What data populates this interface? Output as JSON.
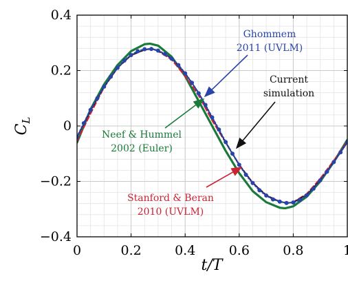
{
  "chart_data": {
    "type": "line",
    "xlabel_main": "t/T",
    "ylabel_main": "C",
    "ylabel_sub": "L",
    "xlim": [
      0,
      1
    ],
    "ylim": [
      -0.4,
      0.4
    ],
    "xticks": [
      0,
      0.2,
      0.4,
      0.6,
      0.8,
      1
    ],
    "xtick_labels": [
      "0",
      "0.2",
      "0.4",
      "0.6",
      "0.8",
      "1"
    ],
    "yticks": [
      -0.4,
      -0.2,
      0,
      0.2,
      0.4
    ],
    "ytick_labels": [
      "−0.4",
      "−0.2",
      "0",
      "0.2",
      "0.4"
    ],
    "grid": true,
    "series": [
      {
        "name": "Neef & Hummel 2002 (Euler)",
        "color": "#1a7a3a",
        "style": "solid-thick",
        "x": [
          0,
          0.05,
          0.1,
          0.15,
          0.2,
          0.25,
          0.27,
          0.3,
          0.35,
          0.4,
          0.45,
          0.5,
          0.55,
          0.6,
          0.65,
          0.7,
          0.75,
          0.77,
          0.8,
          0.85,
          0.9,
          0.95,
          1.0
        ],
        "y": [
          -0.06,
          0.06,
          0.15,
          0.22,
          0.27,
          0.295,
          0.297,
          0.29,
          0.25,
          0.18,
          0.09,
          0.0,
          -0.09,
          -0.17,
          -0.235,
          -0.275,
          -0.295,
          -0.297,
          -0.29,
          -0.255,
          -0.2,
          -0.13,
          -0.05
        ]
      },
      {
        "name": "Stanford & Beran 2010 (UVLM)",
        "color": "#cc2233",
        "style": "dashed",
        "x": [
          0,
          0.05,
          0.1,
          0.15,
          0.2,
          0.25,
          0.28,
          0.3,
          0.35,
          0.4,
          0.45,
          0.5,
          0.55,
          0.6,
          0.65,
          0.7,
          0.75,
          0.78,
          0.8,
          0.85,
          0.9,
          0.95,
          1.0
        ],
        "y": [
          -0.055,
          0.045,
          0.14,
          0.21,
          0.255,
          0.275,
          0.278,
          0.27,
          0.24,
          0.18,
          0.11,
          0.02,
          -0.06,
          -0.14,
          -0.205,
          -0.25,
          -0.273,
          -0.278,
          -0.275,
          -0.245,
          -0.19,
          -0.125,
          -0.055
        ]
      },
      {
        "name": "Current simulation",
        "color": "#111111",
        "style": "solid",
        "x": [
          0,
          0.05,
          0.1,
          0.15,
          0.2,
          0.25,
          0.28,
          0.3,
          0.35,
          0.4,
          0.45,
          0.5,
          0.55,
          0.6,
          0.65,
          0.7,
          0.75,
          0.78,
          0.8,
          0.85,
          0.9,
          0.95,
          1.0
        ],
        "y": [
          -0.04,
          0.055,
          0.14,
          0.21,
          0.255,
          0.275,
          0.278,
          0.272,
          0.245,
          0.19,
          0.12,
          0.03,
          -0.06,
          -0.14,
          -0.205,
          -0.25,
          -0.273,
          -0.278,
          -0.275,
          -0.248,
          -0.195,
          -0.13,
          -0.06
        ]
      },
      {
        "name": "Ghommem 2011 (UVLM)",
        "color": "#2844a8",
        "style": "dotted-markers",
        "x": [
          0.0,
          0.025,
          0.05,
          0.075,
          0.1,
          0.125,
          0.15,
          0.175,
          0.2,
          0.225,
          0.25,
          0.275,
          0.3,
          0.325,
          0.35,
          0.375,
          0.4,
          0.425,
          0.45,
          0.475,
          0.5,
          0.525,
          0.55,
          0.575,
          0.6,
          0.625,
          0.65,
          0.675,
          0.7,
          0.725,
          0.75,
          0.775,
          0.8,
          0.825,
          0.85,
          0.875,
          0.9,
          0.925,
          0.95,
          0.975,
          1.0
        ],
        "y": [
          -0.04,
          0.01,
          0.058,
          0.1,
          0.142,
          0.178,
          0.21,
          0.236,
          0.256,
          0.27,
          0.277,
          0.278,
          0.272,
          0.26,
          0.243,
          0.22,
          0.19,
          0.156,
          0.118,
          0.076,
          0.031,
          -0.013,
          -0.058,
          -0.1,
          -0.14,
          -0.176,
          -0.206,
          -0.232,
          -0.251,
          -0.265,
          -0.273,
          -0.278,
          -0.276,
          -0.267,
          -0.25,
          -0.226,
          -0.196,
          -0.165,
          -0.13,
          -0.095,
          -0.058
        ]
      }
    ],
    "annotations": [
      {
        "lines": [
          "Ghommem",
          "2011 (UVLM)"
        ],
        "color": "#2844a8",
        "arrow_to": [
          0.465,
          0.11
        ]
      },
      {
        "lines": [
          "Current",
          "simulation"
        ],
        "color": "#111111",
        "arrow_to": [
          0.59,
          -0.1
        ]
      },
      {
        "lines": [
          "Neef & Hummel",
          "2002 (Euler)"
        ],
        "color": "#1a7a3a",
        "arrow_to": [
          0.475,
          0.115
        ]
      },
      {
        "lines": [
          "Stanford & Beran",
          "2010 (UVLM)"
        ],
        "color": "#cc2233",
        "arrow_to": [
          0.605,
          -0.14
        ]
      }
    ]
  }
}
